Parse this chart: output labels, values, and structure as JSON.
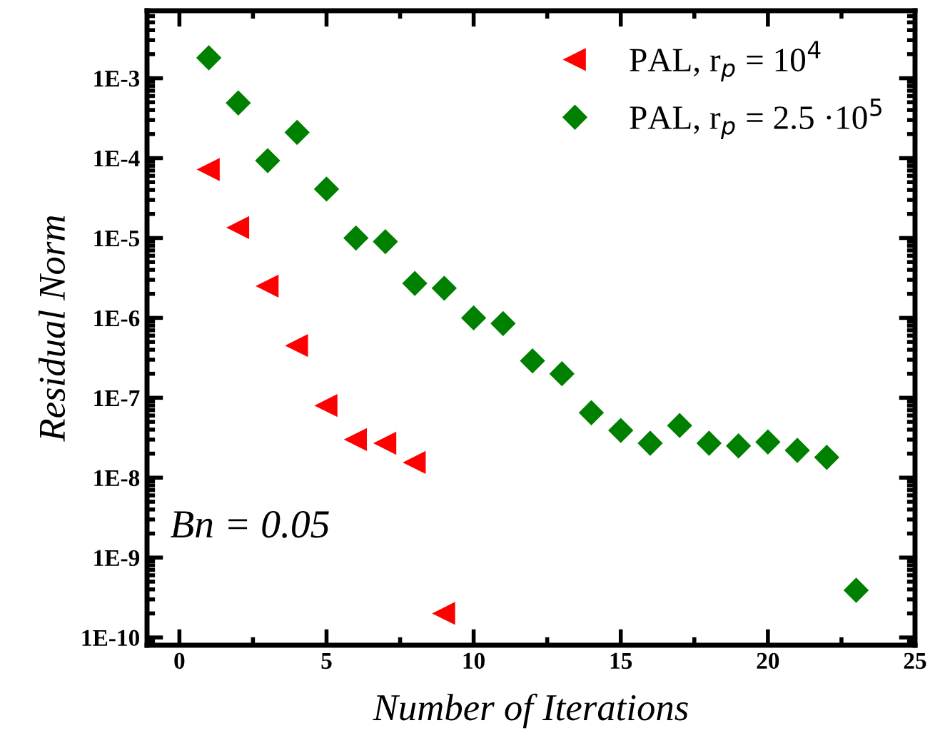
{
  "chart_data": {
    "type": "scatter",
    "xlabel": "Number of Iterations",
    "ylabel": "Residual Norm",
    "x": [
      1,
      2,
      3,
      4,
      5,
      6,
      7,
      8,
      9,
      10,
      11,
      12,
      13,
      14,
      15,
      16,
      17,
      18,
      19,
      20,
      21,
      22,
      23
    ],
    "series": [
      {
        "name": "PAL, r$_{p}$ = 10$^{4}$",
        "color": "#ff0000",
        "marker": "triangle",
        "x": [
          1,
          2,
          3,
          4,
          5,
          6,
          7,
          8,
          9
        ],
        "values": [
          7.2e-05,
          1.35e-05,
          2.5e-06,
          4.5e-07,
          8e-08,
          3e-08,
          2.7e-08,
          1.55e-08,
          2e-10
        ]
      },
      {
        "name": "PAL, r$_{p}$ = 2.5 ·10$^{5}$",
        "color": "#008000",
        "marker": "diamond",
        "values": [
          0.0018,
          0.00049,
          9.3e-05,
          0.00021,
          4.1e-05,
          1e-05,
          9e-06,
          2.7e-06,
          2.35e-06,
          1e-06,
          8.5e-07,
          2.9e-07,
          2e-07,
          6.5e-08,
          3.9e-08,
          2.7e-08,
          4.5e-08,
          2.7e-08,
          2.5e-08,
          2.8e-08,
          2.2e-08,
          1.8e-08,
          3.9e-10
        ]
      }
    ],
    "log": "y",
    "xlim": [
      -1.1,
      25
    ],
    "xticks": [
      0,
      5,
      10,
      15,
      20,
      25
    ],
    "ylim": [
      8e-11,
      0.007
    ],
    "yticks": [
      {
        "value": 1e-10,
        "label": "1E-10"
      },
      {
        "value": 1e-09,
        "label": "1E-9"
      },
      {
        "value": 1e-08,
        "label": "1E-8"
      },
      {
        "value": 1e-07,
        "label": "1E-7"
      },
      {
        "value": 1e-06,
        "label": "1E-6"
      },
      {
        "value": 1e-05,
        "label": "1E-5"
      },
      {
        "value": 0.0001,
        "label": "1E-4"
      },
      {
        "value": 0.001,
        "label": "1E-3"
      }
    ],
    "annotations": [
      "Bn = 0.05"
    ],
    "grid": false,
    "legend": "top right"
  }
}
